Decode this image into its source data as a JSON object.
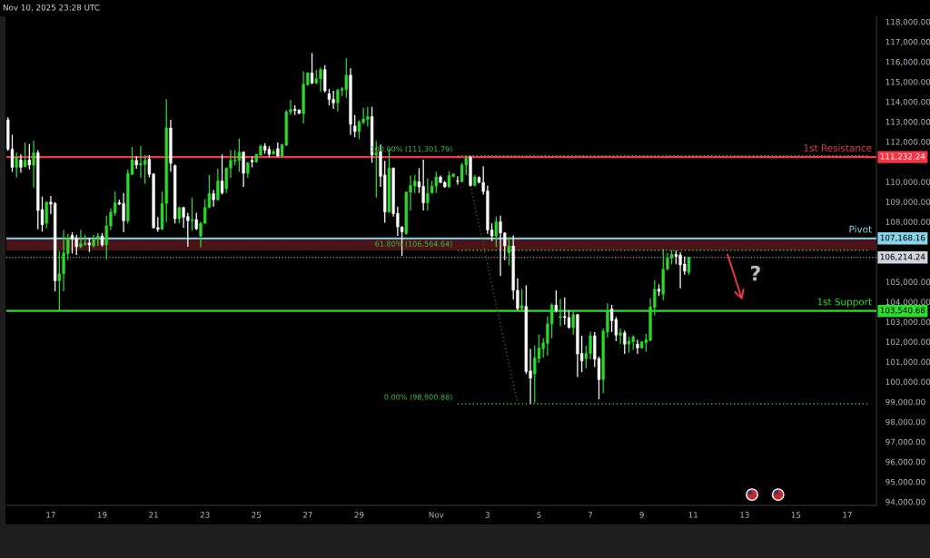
{
  "chart_data": {
    "type": "candlestick",
    "title": "Nov 10, 2025 23:28 UTC",
    "x": [
      "2025-10-15T08:00",
      "2025-10-15T12:00",
      "2025-10-15T16:00",
      "2025-10-15T20:00",
      "2025-10-16T00:00",
      "2025-10-16T04:00",
      "2025-10-16T08:00",
      "2025-10-16T12:00",
      "2025-10-16T16:00",
      "2025-10-16T20:00",
      "2025-10-17T00:00",
      "2025-10-17T04:00",
      "2025-10-17T08:00",
      "2025-10-17T12:00",
      "2025-10-17T16:00",
      "2025-10-17T20:00",
      "2025-10-18T00:00",
      "2025-10-18T04:00",
      "2025-10-18T08:00",
      "2025-10-18T12:00",
      "2025-10-18T16:00",
      "2025-10-18T20:00",
      "2025-10-19T00:00",
      "2025-10-19T04:00",
      "2025-10-19T08:00",
      "2025-10-19T12:00",
      "2025-10-19T16:00",
      "2025-10-19T20:00",
      "2025-10-20T00:00",
      "2025-10-20T04:00",
      "2025-10-20T08:00",
      "2025-10-20T12:00",
      "2025-10-20T16:00",
      "2025-10-20T20:00",
      "2025-10-21T00:00",
      "2025-10-21T04:00",
      "2025-10-21T08:00",
      "2025-10-21T12:00",
      "2025-10-21T16:00",
      "2025-10-21T20:00",
      "2025-10-22T00:00",
      "2025-10-22T04:00",
      "2025-10-22T08:00",
      "2025-10-22T12:00",
      "2025-10-22T16:00",
      "2025-10-22T20:00",
      "2025-10-23T00:00",
      "2025-10-23T04:00",
      "2025-10-23T08:00",
      "2025-10-23T12:00",
      "2025-10-23T16:00",
      "2025-10-23T20:00",
      "2025-10-24T00:00",
      "2025-10-24T04:00",
      "2025-10-24T08:00",
      "2025-10-24T12:00",
      "2025-10-24T16:00",
      "2025-10-24T20:00",
      "2025-10-25T00:00",
      "2025-10-25T04:00",
      "2025-10-25T08:00",
      "2025-10-25T12:00",
      "2025-10-25T16:00",
      "2025-10-25T20:00",
      "2025-10-26T00:00",
      "2025-10-26T04:00",
      "2025-10-26T08:00",
      "2025-10-26T12:00",
      "2025-10-26T16:00",
      "2025-10-26T20:00",
      "2025-10-27T00:00",
      "2025-10-27T04:00",
      "2025-10-27T08:00",
      "2025-10-27T12:00",
      "2025-10-27T16:00",
      "2025-10-27T20:00",
      "2025-10-28T00:00",
      "2025-10-28T04:00",
      "2025-10-28T08:00",
      "2025-10-28T12:00",
      "2025-10-28T16:00",
      "2025-10-28T20:00",
      "2025-10-29T00:00",
      "2025-10-29T04:00",
      "2025-10-29T08:00",
      "2025-10-29T12:00",
      "2025-10-29T16:00",
      "2025-10-29T20:00",
      "2025-10-30T00:00",
      "2025-10-30T04:00",
      "2025-10-30T08:00",
      "2025-10-30T12:00",
      "2025-10-30T16:00",
      "2025-10-30T20:00",
      "2025-10-31T00:00",
      "2025-10-31T04:00",
      "2025-10-31T08:00",
      "2025-10-31T12:00",
      "2025-10-31T16:00",
      "2025-10-31T20:00",
      "2025-11-01T00:00",
      "2025-11-01T04:00",
      "2025-11-01T08:00",
      "2025-11-01T12:00",
      "2025-11-01T16:00",
      "2025-11-01T20:00",
      "2025-11-02T00:00",
      "2025-11-02T04:00",
      "2025-11-02T08:00",
      "2025-11-02T12:00",
      "2025-11-02T16:00",
      "2025-11-02T20:00",
      "2025-11-03T00:00",
      "2025-11-03T04:00",
      "2025-11-03T08:00",
      "2025-11-03T12:00",
      "2025-11-03T16:00",
      "2025-11-03T20:00",
      "2025-11-04T00:00",
      "2025-11-04T04:00",
      "2025-11-04T08:00",
      "2025-11-04T12:00",
      "2025-11-04T16:00",
      "2025-11-04T20:00",
      "2025-11-05T00:00",
      "2025-11-05T04:00",
      "2025-11-05T08:00",
      "2025-11-05T12:00",
      "2025-11-05T16:00",
      "2025-11-05T20:00",
      "2025-11-06T00:00",
      "2025-11-06T04:00",
      "2025-11-06T08:00",
      "2025-11-06T12:00",
      "2025-11-06T16:00",
      "2025-11-06T20:00",
      "2025-11-07T00:00",
      "2025-11-07T04:00",
      "2025-11-07T08:00",
      "2025-11-07T12:00",
      "2025-11-07T16:00",
      "2025-11-07T20:00",
      "2025-11-08T00:00",
      "2025-11-08T04:00",
      "2025-11-08T08:00",
      "2025-11-08T12:00",
      "2025-11-08T16:00",
      "2025-11-08T20:00",
      "2025-11-09T00:00",
      "2025-11-09T04:00",
      "2025-11-09T08:00",
      "2025-11-09T12:00",
      "2025-11-09T16:00",
      "2025-11-09T20:00",
      "2025-11-10T00:00",
      "2025-11-10T04:00",
      "2025-11-10T08:00",
      "2025-11-10T12:00",
      "2025-11-10T16:00",
      "2025-11-10T20:00"
    ],
    "ohlc": [
      [
        113100,
        113220,
        111550,
        111630
      ],
      [
        111630,
        112350,
        110500,
        110720
      ],
      [
        110720,
        111480,
        110220,
        111220
      ],
      [
        111100,
        111370,
        110460,
        110720
      ],
      [
        110750,
        111960,
        110720,
        111070
      ],
      [
        111100,
        111890,
        110620,
        110830
      ],
      [
        110830,
        112040,
        109710,
        111450
      ],
      [
        111450,
        111580,
        107620,
        108560
      ],
      [
        108610,
        109260,
        107500,
        107850
      ],
      [
        107920,
        109010,
        107670,
        108980
      ],
      [
        108980,
        109290,
        108380,
        108880
      ],
      [
        108910,
        108980,
        104520,
        105050
      ],
      [
        105050,
        106560,
        103540,
        105400
      ],
      [
        105400,
        107590,
        104520,
        106440
      ],
      [
        106410,
        107400,
        106080,
        107140
      ],
      [
        107320,
        107470,
        106410,
        107140
      ],
      [
        107140,
        107350,
        106340,
        106750
      ],
      [
        106750,
        107590,
        106680,
        106900
      ],
      [
        106870,
        107350,
        106790,
        106930
      ],
      [
        106940,
        107170,
        106490,
        106840
      ],
      [
        106790,
        107350,
        106720,
        107090
      ],
      [
        107230,
        107440,
        106790,
        107290
      ],
      [
        107290,
        107440,
        106750,
        106840
      ],
      [
        106840,
        108300,
        106110,
        107800
      ],
      [
        107800,
        108680,
        107590,
        108480
      ],
      [
        108450,
        109510,
        108300,
        108950
      ],
      [
        108950,
        109100,
        108830,
        108880
      ],
      [
        108910,
        109440,
        107470,
        108050
      ],
      [
        108050,
        110620,
        107920,
        110420
      ],
      [
        110370,
        111740,
        110340,
        111100
      ],
      [
        111070,
        111280,
        110650,
        110830
      ],
      [
        110840,
        111780,
        110190,
        110920
      ],
      [
        110870,
        111330,
        109890,
        111070
      ],
      [
        111130,
        111330,
        110220,
        110370
      ],
      [
        110390,
        110420,
        107650,
        107700
      ],
      [
        107710,
        108230,
        107500,
        107620
      ],
      [
        107620,
        109510,
        107590,
        108910
      ],
      [
        108910,
        114120,
        108000,
        112690
      ],
      [
        112690,
        113100,
        110500,
        110920
      ],
      [
        110800,
        110870,
        107920,
        108150
      ],
      [
        108150,
        108760,
        107920,
        108710
      ],
      [
        108710,
        108760,
        107700,
        108230
      ],
      [
        108260,
        108450,
        106750,
        108050
      ],
      [
        108050,
        109210,
        107550,
        108110
      ],
      [
        108110,
        108450,
        107590,
        107650
      ],
      [
        107290,
        108000,
        106720,
        107920
      ],
      [
        107920,
        109130,
        107890,
        108710
      ],
      [
        108710,
        110340,
        108680,
        109410
      ],
      [
        109410,
        109590,
        108760,
        109100
      ],
      [
        109100,
        110650,
        109060,
        110040
      ],
      [
        110040,
        111370,
        109360,
        109440
      ],
      [
        109650,
        110720,
        109440,
        110680
      ],
      [
        110680,
        111580,
        110190,
        111070
      ],
      [
        111050,
        111580,
        110830,
        111100
      ],
      [
        111070,
        112160,
        110500,
        111480
      ],
      [
        111480,
        111520,
        109740,
        110420
      ],
      [
        110420,
        110980,
        110190,
        110950
      ],
      [
        111070,
        111280,
        110720,
        110990
      ],
      [
        110990,
        111400,
        110950,
        111370
      ],
      [
        111330,
        111860,
        111280,
        111780
      ],
      [
        111780,
        111930,
        111400,
        111580
      ],
      [
        111630,
        111780,
        111220,
        111370
      ],
      [
        111400,
        111630,
        111330,
        111510
      ],
      [
        111660,
        111960,
        111250,
        111280
      ],
      [
        111280,
        111890,
        111250,
        111860
      ],
      [
        111830,
        113590,
        111780,
        113490
      ],
      [
        113490,
        114080,
        113340,
        113620
      ],
      [
        113620,
        113820,
        113340,
        113560
      ],
      [
        113590,
        113620,
        113400,
        113410
      ],
      [
        113410,
        115510,
        112910,
        114880
      ],
      [
        114850,
        115480,
        114800,
        115440
      ],
      [
        115440,
        116440,
        114880,
        114930
      ],
      [
        114930,
        115590,
        114880,
        115150
      ],
      [
        115150,
        115710,
        114500,
        115610
      ],
      [
        115610,
        115830,
        114460,
        114550
      ],
      [
        114400,
        114650,
        113820,
        114120
      ],
      [
        114120,
        114550,
        113640,
        113940
      ],
      [
        113940,
        114650,
        113520,
        114580
      ],
      [
        114580,
        114730,
        114280,
        114650
      ],
      [
        114610,
        116170,
        114200,
        115330
      ],
      [
        115330,
        115670,
        112340,
        112870
      ],
      [
        112790,
        113340,
        112230,
        112510
      ],
      [
        112510,
        113070,
        112130,
        112990
      ],
      [
        112960,
        113700,
        112880,
        113140
      ],
      [
        113110,
        113750,
        112760,
        113260
      ],
      [
        113260,
        113750,
        110950,
        111330
      ],
      [
        111330,
        112040,
        109210,
        111450
      ],
      [
        111510,
        111860,
        109740,
        110270
      ],
      [
        110340,
        111050,
        107950,
        108480
      ],
      [
        108480,
        111630,
        108450,
        110680
      ],
      [
        110680,
        110720,
        108260,
        108410
      ],
      [
        108420,
        108760,
        107290,
        107740
      ],
      [
        107740,
        107770,
        106290,
        107500
      ],
      [
        107400,
        109510,
        107350,
        109480
      ],
      [
        109480,
        110310,
        108560,
        109810
      ],
      [
        109780,
        110340,
        109440,
        110040
      ],
      [
        110000,
        110680,
        109440,
        109740
      ],
      [
        109770,
        111100,
        108560,
        108940
      ],
      [
        108950,
        110160,
        108560,
        109410
      ],
      [
        109440,
        110040,
        109410,
        109780
      ],
      [
        109770,
        110500,
        109440,
        110240
      ],
      [
        110240,
        110310,
        109920,
        109970
      ],
      [
        109970,
        110040,
        109710,
        109740
      ],
      [
        109740,
        110530,
        109710,
        110310
      ],
      [
        110250,
        110420,
        110220,
        110390
      ],
      [
        110040,
        110270,
        109860,
        110010
      ],
      [
        110010,
        110950,
        109970,
        110840
      ],
      [
        110840,
        111250,
        110340,
        111180
      ],
      [
        111220,
        111300,
        109770,
        109810
      ],
      [
        109810,
        110340,
        109770,
        110240
      ],
      [
        110220,
        110270,
        109920,
        109970
      ],
      [
        109970,
        110770,
        109360,
        109510
      ],
      [
        109540,
        109810,
        107400,
        107590
      ],
      [
        107590,
        107920,
        107020,
        107290
      ],
      [
        107290,
        108260,
        106740,
        108000
      ],
      [
        108000,
        108300,
        105280,
        107440
      ],
      [
        107440,
        107470,
        106080,
        106790
      ],
      [
        106440,
        107240,
        105810,
        106790
      ],
      [
        106790,
        107320,
        104110,
        104570
      ],
      [
        104570,
        105170,
        103570,
        103660
      ],
      [
        103660,
        104630,
        103570,
        103810
      ],
      [
        103770,
        104820,
        100390,
        100510
      ],
      [
        100540,
        101650,
        98900,
        100180
      ],
      [
        100390,
        101800,
        98960,
        101200
      ],
      [
        101160,
        102360,
        100940,
        101690
      ],
      [
        101650,
        102180,
        101200,
        101950
      ],
      [
        101920,
        103270,
        101300,
        102900
      ],
      [
        102890,
        103920,
        102180,
        103840
      ],
      [
        103840,
        104570,
        103460,
        103570
      ],
      [
        103210,
        104140,
        102780,
        103270
      ],
      [
        103270,
        104220,
        102860,
        103210
      ],
      [
        103210,
        103570,
        102660,
        102710
      ],
      [
        102710,
        103540,
        102360,
        103360
      ],
      [
        103360,
        103390,
        100240,
        101390
      ],
      [
        101420,
        102300,
        100480,
        101040
      ],
      [
        101150,
        101800,
        100670,
        101420
      ],
      [
        101420,
        102510,
        101120,
        102300
      ],
      [
        102300,
        102480,
        100740,
        101120
      ],
      [
        101160,
        101270,
        99120,
        100110
      ],
      [
        100110,
        102660,
        99430,
        102530
      ],
      [
        102480,
        103920,
        102210,
        103540
      ],
      [
        103640,
        103840,
        102480,
        103050
      ],
      [
        103120,
        103240,
        102030,
        102330
      ],
      [
        102330,
        102660,
        101880,
        102450
      ],
      [
        102450,
        102560,
        101390,
        101880
      ],
      [
        101880,
        102250,
        101450,
        102030
      ],
      [
        102000,
        102330,
        101600,
        102250
      ],
      [
        101880,
        102100,
        101390,
        101690
      ],
      [
        101690,
        102030,
        101650,
        102000
      ],
      [
        101950,
        102400,
        101500,
        102100
      ],
      [
        102070,
        104170,
        102030,
        103740
      ],
      [
        103720,
        105080,
        103310,
        104630
      ],
      [
        104630,
        104870,
        104290,
        104520
      ],
      [
        104370,
        106640,
        104070,
        105630
      ],
      [
        105630,
        106440,
        105580,
        106180
      ],
      [
        106180,
        106590,
        105880,
        106370
      ],
      [
        106370,
        106560,
        105880,
        106260
      ],
      [
        106340,
        106490,
        104670,
        105840
      ],
      [
        105880,
        106260,
        105350,
        105530
      ],
      [
        105470,
        106260,
        105350,
        106214.24
      ]
    ],
    "xlim": [
      "2025-10-15T06:30",
      "2025-11-18T03:10"
    ],
    "ylim": [
      93820,
      118270
    ],
    "xticks": [
      {
        "value": "2025-10-17",
        "label": "17"
      },
      {
        "value": "2025-10-19",
        "label": "19"
      },
      {
        "value": "2025-10-21",
        "label": "21"
      },
      {
        "value": "2025-10-23",
        "label": "23"
      },
      {
        "value": "2025-10-25",
        "label": "25"
      },
      {
        "value": "2025-10-27",
        "label": "27"
      },
      {
        "value": "2025-10-29",
        "label": "29"
      },
      {
        "value": "2025-11-01",
        "label": "Nov"
      },
      {
        "value": "2025-11-03",
        "label": "3"
      },
      {
        "value": "2025-11-05",
        "label": "5"
      },
      {
        "value": "2025-11-07",
        "label": "7"
      },
      {
        "value": "2025-11-09",
        "label": "9"
      },
      {
        "value": "2025-11-11",
        "label": "11"
      },
      {
        "value": "2025-11-13",
        "label": "13"
      },
      {
        "value": "2025-11-15",
        "label": "15"
      },
      {
        "value": "2025-11-17",
        "label": "17"
      }
    ],
    "yticks": [
      {
        "value": 94000,
        "label": "94,000.00"
      },
      {
        "value": 95000,
        "label": "95,000.00"
      },
      {
        "value": 96000,
        "label": "96,000.00"
      },
      {
        "value": 97000,
        "label": "97,000.00"
      },
      {
        "value": 98000,
        "label": "98,000.00"
      },
      {
        "value": 99000,
        "label": "99,000.00"
      },
      {
        "value": 100000,
        "label": "100,000.00"
      },
      {
        "value": 101000,
        "label": "101,000.00"
      },
      {
        "value": 102000,
        "label": "102,000.00"
      },
      {
        "value": 103000,
        "label": "103,000.00"
      },
      {
        "value": 104000,
        "label": "104,000.00"
      },
      {
        "value": 105000,
        "label": "105,000.00"
      },
      {
        "value": 108000,
        "label": "108,000.00"
      },
      {
        "value": 109000,
        "label": "109,000.00"
      },
      {
        "value": 110000,
        "label": "110,000.00"
      },
      {
        "value": 112000,
        "label": "112,000.00"
      },
      {
        "value": 113000,
        "label": "113,000.00"
      },
      {
        "value": 114000,
        "label": "114,000.00"
      },
      {
        "value": 115000,
        "label": "115,000.00"
      },
      {
        "value": 116000,
        "label": "116,000.00"
      },
      {
        "value": 117000,
        "label": "117,000.00"
      },
      {
        "value": 118000,
        "label": "118,000.00"
      }
    ],
    "series": [
      {
        "type": "line",
        "x": [
          "2025-11-01T20:00",
          "2025-11-17T20:00"
        ],
        "values": [
          111301.79,
          111301.79
        ],
        "color": "#3fae3f",
        "line_style": "dotted"
      },
      {
        "type": "line",
        "x": [
          "2025-11-01T20:00",
          "2025-11-17T20:00"
        ],
        "values": [
          106564.64,
          106564.64
        ],
        "color": "#3fae3f",
        "line_style": "dotted"
      },
      {
        "type": "line",
        "x": [
          "2025-11-01T20:00",
          "2025-11-17T20:00"
        ],
        "values": [
          98900.88,
          98900.88
        ],
        "color": "#3fae3f",
        "line_style": "dotted"
      },
      {
        "type": "line",
        "x": [
          "2025-11-02T02:00",
          "2025-11-04T04:00"
        ],
        "values": [
          111301.79,
          98900.88
        ],
        "color": "#1f6e1f",
        "line_style": "dotted"
      }
    ],
    "bands": [
      {
        "axis": "y",
        "from": 106564.64,
        "to": 107168.16,
        "color": "#4a1418"
      }
    ],
    "ref_lines": [
      {
        "axis": "y",
        "value": 111232.24,
        "label": "111,232.24",
        "color": "#f23645"
      },
      {
        "axis": "y",
        "value": 107168.16,
        "label": "107,168.16",
        "color": "#87d3e8"
      },
      {
        "axis": "y",
        "value": 103540.68,
        "label": "103,540.68",
        "color": "#2ddc2d"
      },
      {
        "axis": "y",
        "value": 106214.24,
        "label": "106,214.24",
        "color": "#d1d4dc",
        "line_style": "dotted"
      }
    ],
    "annotations": [
      {
        "text": "100.00% (111,301.79)",
        "x": "2025-11-01T20:00",
        "y": 111301.79
      },
      {
        "text": "61.80% (106,564.64)",
        "x": "2025-11-01T20:00",
        "y": 106564.64
      },
      {
        "text": "0.00% (98,900.88)",
        "x": "2025-11-01T20:00",
        "y": 98900.88
      },
      {
        "text": "1st Resistance",
        "x": "2025-11-17T23:00",
        "y": 111232.24
      },
      {
        "text": "Pivot",
        "x": "2025-11-17T23:00",
        "y": 107168.16
      },
      {
        "text": "1st Support",
        "x": "2025-11-17T23:00",
        "y": 103540.68
      },
      "?"
    ]
  }
}
